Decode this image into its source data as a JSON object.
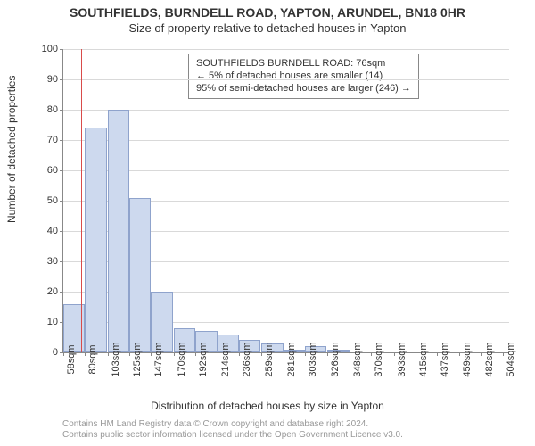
{
  "title": "SOUTHFIELDS, BURNDELL ROAD, YAPTON, ARUNDEL, BN18 0HR",
  "subtitle": "Size of property relative to detached houses in Yapton",
  "ylabel": "Number of detached properties",
  "xlabel": "Distribution of detached houses by size in Yapton",
  "footer1": "Contains HM Land Registry data © Crown copyright and database right 2024.",
  "footer2": "Contains public sector information licensed under the Open Government Licence v3.0.",
  "chart": {
    "type": "histogram",
    "bar_fill": "#cdd9ee",
    "bar_stroke": "#8fa3cc",
    "grid_color": "#d9d9d9",
    "axis_color": "#888888",
    "background": "#ffffff",
    "ref_line_color": "#d94b4a",
    "ref_line_value": 76,
    "x_min": 58,
    "x_max": 510,
    "ylim": [
      0,
      100
    ],
    "ytick_step": 10,
    "bar_width_units": 22,
    "label_fontsize": 11,
    "title_fontsize": 14,
    "subtitle_fontsize": 13,
    "bars": [
      {
        "x": 58,
        "v": 16
      },
      {
        "x": 80,
        "v": 74
      },
      {
        "x": 103,
        "v": 80
      },
      {
        "x": 125,
        "v": 51
      },
      {
        "x": 147,
        "v": 20
      },
      {
        "x": 170,
        "v": 8
      },
      {
        "x": 192,
        "v": 7
      },
      {
        "x": 214,
        "v": 6
      },
      {
        "x": 236,
        "v": 4
      },
      {
        "x": 259,
        "v": 3
      },
      {
        "x": 281,
        "v": 1
      },
      {
        "x": 303,
        "v": 2
      },
      {
        "x": 326,
        "v": 1
      },
      {
        "x": 348,
        "v": 0
      },
      {
        "x": 370,
        "v": 0
      },
      {
        "x": 393,
        "v": 0
      },
      {
        "x": 415,
        "v": 0
      },
      {
        "x": 437,
        "v": 0
      },
      {
        "x": 459,
        "v": 0
      },
      {
        "x": 482,
        "v": 0
      },
      {
        "x": 504,
        "v": 0
      }
    ],
    "xticks": [
      "58sqm",
      "80sqm",
      "103sqm",
      "125sqm",
      "147sqm",
      "170sqm",
      "192sqm",
      "214sqm",
      "236sqm",
      "259sqm",
      "281sqm",
      "303sqm",
      "326sqm",
      "348sqm",
      "370sqm",
      "393sqm",
      "415sqm",
      "437sqm",
      "459sqm",
      "482sqm",
      "504sqm"
    ]
  },
  "legend": {
    "line1": "SOUTHFIELDS BURNDELL ROAD: 76sqm",
    "line2": "← 5% of detached houses are smaller (14)",
    "line3": "95% of semi-detached houses are larger (246) →"
  }
}
